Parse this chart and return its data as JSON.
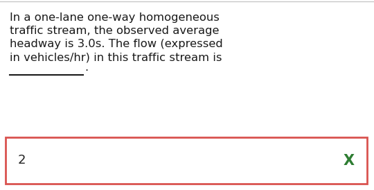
{
  "bg_color": "#ffffff",
  "top_border_color": "#c8c8c8",
  "question_text_lines": [
    "In a one-lane one-way homogeneous",
    "traffic stream, the observed average",
    "headway is 3.0s. The flow (expressed",
    "in vehicles/hr) in this traffic stream is"
  ],
  "answer_text": "2",
  "answer_box_color": "#d9534f",
  "answer_text_color": "#222222",
  "x_mark": "X",
  "x_mark_color": "#2e7d32",
  "text_color": "#1a1a1a",
  "font_size_question": 11.8,
  "font_size_answer": 13,
  "font_size_x": 15
}
